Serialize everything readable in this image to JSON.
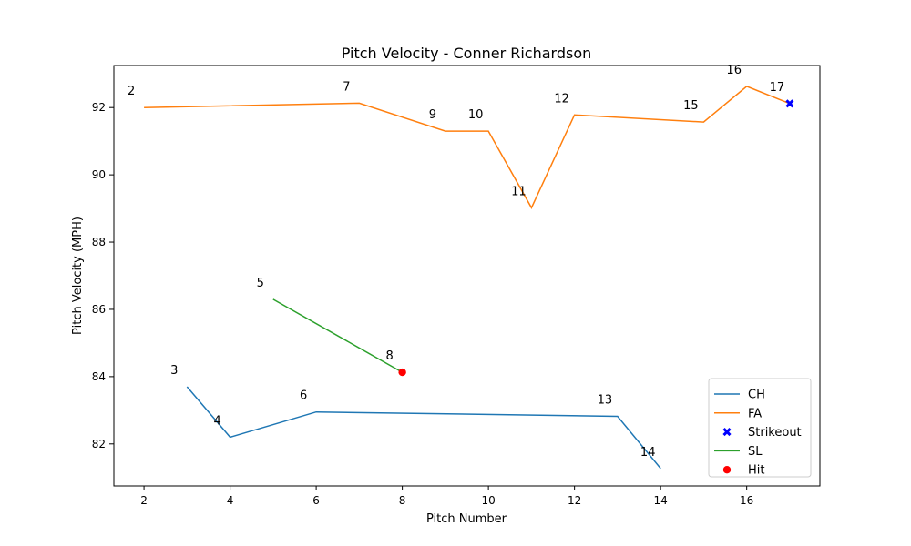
{
  "chart_data": {
    "type": "line",
    "title": "Pitch Velocity - Conner Richardson",
    "xlabel": "Pitch Number",
    "ylabel": "Pitch Velocity (MPH)",
    "xlim": [
      1.3,
      17.7
    ],
    "ylim": [
      80.75,
      93.25
    ],
    "xticks": [
      2,
      4,
      6,
      8,
      10,
      12,
      14,
      16
    ],
    "yticks": [
      82,
      84,
      86,
      88,
      90,
      92
    ],
    "grid": false,
    "legend_position": "lower-right",
    "series": [
      {
        "name": "CH",
        "color": "#1f77b4",
        "x": [
          3,
          4,
          6,
          13,
          14
        ],
        "y": [
          83.7,
          82.2,
          82.95,
          82.82,
          81.27
        ]
      },
      {
        "name": "FA",
        "color": "#ff7f0e",
        "x": [
          2,
          7,
          9,
          10,
          11,
          12,
          15,
          16,
          17
        ],
        "y": [
          92.0,
          92.13,
          91.3,
          91.3,
          89.02,
          91.78,
          91.57,
          92.63,
          92.12
        ]
      },
      {
        "name": "SL",
        "color": "#2ca02c",
        "x": [
          5,
          8
        ],
        "y": [
          86.3,
          84.13
        ]
      }
    ],
    "markers": [
      {
        "name": "Strikeout",
        "color": "#0000ff",
        "shape": "x",
        "points": [
          {
            "x": 17,
            "y": 92.12
          }
        ]
      },
      {
        "name": "Hit",
        "color": "#ff0000",
        "shape": "circle",
        "points": [
          {
            "x": 8,
            "y": 84.13
          }
        ]
      }
    ],
    "point_labels": [
      {
        "text": "2",
        "x": 2,
        "y": 92.0
      },
      {
        "text": "3",
        "x": 3,
        "y": 83.7
      },
      {
        "text": "4",
        "x": 4,
        "y": 82.2
      },
      {
        "text": "5",
        "x": 5,
        "y": 86.3
      },
      {
        "text": "6",
        "x": 6,
        "y": 82.95
      },
      {
        "text": "7",
        "x": 7,
        "y": 92.13
      },
      {
        "text": "8",
        "x": 8,
        "y": 84.13
      },
      {
        "text": "9",
        "x": 9,
        "y": 91.3
      },
      {
        "text": "10",
        "x": 10,
        "y": 91.3
      },
      {
        "text": "11",
        "x": 11,
        "y": 89.02
      },
      {
        "text": "12",
        "x": 12,
        "y": 91.78
      },
      {
        "text": "13",
        "x": 13,
        "y": 82.82
      },
      {
        "text": "14",
        "x": 14,
        "y": 81.27
      },
      {
        "text": "15",
        "x": 15,
        "y": 91.57
      },
      {
        "text": "16",
        "x": 16,
        "y": 92.63
      },
      {
        "text": "17",
        "x": 17,
        "y": 92.12
      }
    ],
    "legend": [
      "CH",
      "FA",
      "Strikeout",
      "SL",
      "Hit"
    ]
  }
}
